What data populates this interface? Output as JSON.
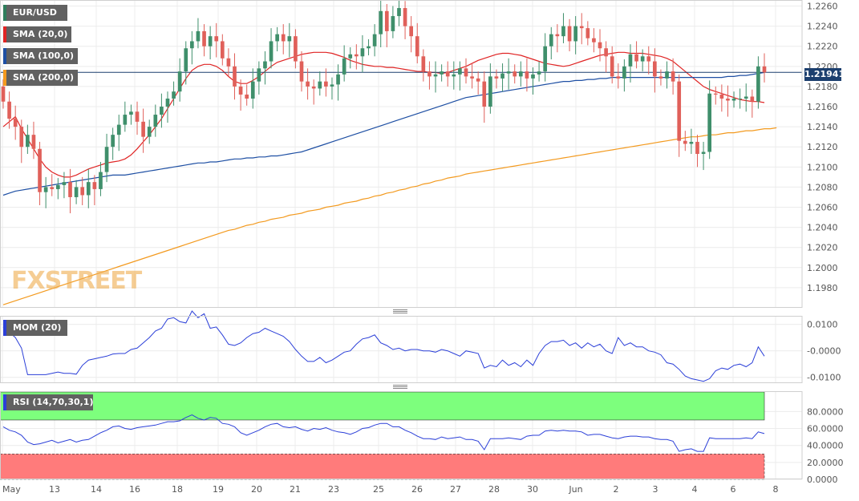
{
  "chart_data": [
    {
      "type": "candlestick",
      "symbol": "EUR/USD",
      "last_price": "1.21941",
      "ylim": [
        1.196,
        1.2266
      ],
      "y_ticks": [
        "1.2260",
        "1.2240",
        "1.2220",
        "1.2200",
        "1.2180",
        "1.2160",
        "1.2140",
        "1.2120",
        "1.2100",
        "1.2080",
        "1.2060",
        "1.2040",
        "1.2020",
        "1.2000",
        "1.1980"
      ],
      "x_ticks": [
        "May",
        "13",
        "14",
        "16",
        "18",
        "19",
        "20",
        "21",
        "23",
        "25",
        "26",
        "27",
        "28",
        "30",
        "Jun",
        "2",
        "3",
        "4",
        "6",
        "8"
      ],
      "closes": [
        1.2165,
        1.2148,
        1.214,
        1.212,
        1.2132,
        1.2118,
        1.2075,
        1.208,
        1.2078,
        1.2082,
        1.2085,
        1.207,
        1.208,
        1.2072,
        1.2085,
        1.2078,
        1.2095,
        1.212,
        1.2132,
        1.2142,
        1.2152,
        1.2155,
        1.2145,
        1.213,
        1.214,
        1.2152,
        1.216,
        1.2168,
        1.2175,
        1.2195,
        1.2218,
        1.2225,
        1.2235,
        1.222,
        1.223,
        1.2225,
        1.2208,
        1.22,
        1.218,
        1.2172,
        1.2168,
        1.2185,
        1.2198,
        1.2205,
        1.2225,
        1.2232,
        1.2225,
        1.223,
        1.2205,
        1.2185,
        1.218,
        1.2178,
        1.2185,
        1.218,
        1.2182,
        1.2192,
        1.2208,
        1.2212,
        1.221,
        1.2218,
        1.222,
        1.2232,
        1.2255,
        1.2235,
        1.225,
        1.2258,
        1.224,
        1.223,
        1.221,
        1.2195,
        1.219,
        1.2192,
        1.2195,
        1.219,
        1.2192,
        1.2198,
        1.219,
        1.2188,
        1.2185,
        1.216,
        1.219,
        1.2188,
        1.2193,
        1.2195,
        1.219,
        1.2195,
        1.2188,
        1.2192,
        1.2195,
        1.222,
        1.2232,
        1.223,
        1.224,
        1.2225,
        1.224,
        1.2238,
        1.2228,
        1.2224,
        1.2218,
        1.221,
        1.219,
        1.2188,
        1.22,
        1.2212,
        1.2205,
        1.221,
        1.2205,
        1.219,
        1.2188,
        1.2195,
        1.2185,
        1.2126,
        1.2123,
        1.2125,
        1.2113,
        1.2115,
        1.2173,
        1.2172,
        1.2168,
        1.2166,
        1.2168,
        1.2168,
        1.217,
        1.2165,
        1.22,
        1.2194
      ],
      "opens": [
        1.218,
        1.2165,
        1.2148,
        1.214,
        1.212,
        1.2132,
        1.2118,
        1.2075,
        1.208,
        1.2078,
        1.2082,
        1.2085,
        1.207,
        1.208,
        1.2072,
        1.2085,
        1.2078,
        1.2095,
        1.212,
        1.2132,
        1.2142,
        1.2152,
        1.2155,
        1.2145,
        1.213,
        1.214,
        1.2152,
        1.216,
        1.2168,
        1.2175,
        1.2195,
        1.2218,
        1.2225,
        1.2235,
        1.222,
        1.223,
        1.2225,
        1.2208,
        1.22,
        1.218,
        1.2172,
        1.2168,
        1.2185,
        1.2198,
        1.2205,
        1.2225,
        1.2232,
        1.2225,
        1.223,
        1.2205,
        1.2185,
        1.218,
        1.2178,
        1.2185,
        1.218,
        1.2182,
        1.2192,
        1.2208,
        1.2212,
        1.221,
        1.2218,
        1.222,
        1.2232,
        1.2255,
        1.2235,
        1.225,
        1.2258,
        1.224,
        1.223,
        1.221,
        1.2195,
        1.219,
        1.2192,
        1.2195,
        1.219,
        1.2192,
        1.2198,
        1.219,
        1.2188,
        1.2185,
        1.216,
        1.219,
        1.2188,
        1.2193,
        1.2195,
        1.219,
        1.2195,
        1.2188,
        1.2192,
        1.2195,
        1.222,
        1.2232,
        1.223,
        1.224,
        1.2225,
        1.224,
        1.2238,
        1.2228,
        1.2224,
        1.2218,
        1.221,
        1.219,
        1.2188,
        1.22,
        1.2212,
        1.2205,
        1.221,
        1.2205,
        1.219,
        1.2188,
        1.2195,
        1.2185,
        1.2126,
        1.2123,
        1.2125,
        1.2113,
        1.2115,
        1.2173,
        1.2172,
        1.2168,
        1.2166,
        1.2168,
        1.2168,
        1.217,
        1.2165,
        1.22
      ],
      "series": [
        {
          "name": "SMA (20,0)",
          "color": "#e02424",
          "values": [
            1.214,
            1.2145,
            1.215,
            1.2138,
            1.2128,
            1.2118,
            1.2108,
            1.21,
            1.2095,
            1.2092,
            1.209,
            1.209,
            1.2092,
            1.2095,
            1.2098,
            1.21,
            1.2102,
            1.2104,
            1.2105,
            1.2106,
            1.2108,
            1.2112,
            1.2118,
            1.2125,
            1.2132,
            1.214,
            1.2148,
            1.2158,
            1.2168,
            1.2178,
            1.2188,
            1.2196,
            1.22,
            1.2202,
            1.2202,
            1.22,
            1.2196,
            1.219,
            1.2185,
            1.2183,
            1.2183,
            1.2186,
            1.219,
            1.2195,
            1.22,
            1.2204,
            1.2206,
            1.2208,
            1.221,
            1.2212,
            1.2213,
            1.2214,
            1.2214,
            1.2214,
            1.2213,
            1.2211,
            1.2209,
            1.2206,
            1.2204,
            1.2202,
            1.2201,
            1.22,
            1.22,
            1.2199,
            1.2199,
            1.2198,
            1.2197,
            1.2196,
            1.2195,
            1.2195,
            1.2194,
            1.2194,
            1.2193,
            1.2194,
            1.2196,
            1.2198,
            1.22,
            1.2203,
            1.2206,
            1.2208,
            1.221,
            1.2212,
            1.2213,
            1.2213,
            1.2212,
            1.2211,
            1.2209,
            1.2207,
            1.2205,
            1.2203,
            1.2202,
            1.2201,
            1.22,
            1.2201,
            1.2203,
            1.2205,
            1.2207,
            1.2209,
            1.2211,
            1.2212,
            1.2213,
            1.2214,
            1.2214,
            1.2213,
            1.2213,
            1.2213,
            1.2212,
            1.2211,
            1.221,
            1.2208,
            1.2205,
            1.22,
            1.2195,
            1.219,
            1.2185,
            1.218,
            1.2177,
            1.2175,
            1.2173,
            1.2171,
            1.2169,
            1.2167,
            1.2166,
            1.2165,
            1.2165,
            1.2164
          ]
        },
        {
          "name": "SMA (100,0)",
          "color": "#1e4fa3",
          "values": [
            1.2072,
            1.2074,
            1.2076,
            1.2077,
            1.2078,
            1.2079,
            1.208,
            1.2081,
            1.2082,
            1.2083,
            1.2084,
            1.2085,
            1.2086,
            1.2087,
            1.2088,
            1.2089,
            1.209,
            1.2091,
            1.2092,
            1.2092,
            1.2092,
            1.2093,
            1.2094,
            1.2095,
            1.2096,
            1.2097,
            1.2098,
            1.2099,
            1.21,
            1.2101,
            1.2102,
            1.2103,
            1.2104,
            1.2104,
            1.2105,
            1.2105,
            1.2106,
            1.2107,
            1.2108,
            1.2108,
            1.2109,
            1.2109,
            1.211,
            1.211,
            1.2111,
            1.2111,
            1.2112,
            1.2113,
            1.2114,
            1.2115,
            1.2117,
            1.2119,
            1.2121,
            1.2123,
            1.2125,
            1.2127,
            1.2129,
            1.2131,
            1.2133,
            1.2135,
            1.2137,
            1.2139,
            1.2141,
            1.2143,
            1.2145,
            1.2147,
            1.2149,
            1.2151,
            1.2153,
            1.2155,
            1.2157,
            1.2159,
            1.2161,
            1.2163,
            1.2165,
            1.2167,
            1.2169,
            1.217,
            1.2171,
            1.2172,
            1.2173,
            1.2174,
            1.2175,
            1.2176,
            1.2177,
            1.2178,
            1.2179,
            1.218,
            1.2181,
            1.2182,
            1.2183,
            1.2184,
            1.2185,
            1.2185,
            1.2186,
            1.2186,
            1.2187,
            1.2187,
            1.2188,
            1.2188,
            1.2189,
            1.2189,
            1.2189,
            1.2189,
            1.2189,
            1.2189,
            1.2189,
            1.2189,
            1.2189,
            1.2189,
            1.2189,
            1.2189,
            1.2189,
            1.2189,
            1.2189,
            1.2189,
            1.2189,
            1.2189,
            1.2189,
            1.219,
            1.219,
            1.2191,
            1.2191,
            1.2192,
            1.2193,
            1.2194
          ]
        },
        {
          "name": "SMA (200,0)",
          "color": "#f39a1f",
          "values": [
            1.1963,
            1.1965,
            1.1967,
            1.1969,
            1.1971,
            1.1973,
            1.1975,
            1.1977,
            1.1979,
            1.1981,
            1.1983,
            1.1985,
            1.1987,
            1.1989,
            1.1991,
            1.1993,
            1.1995,
            1.1997,
            1.1999,
            1.2001,
            1.2003,
            1.2005,
            1.2007,
            1.2009,
            1.2011,
            1.2013,
            1.2015,
            1.2017,
            1.2019,
            1.2021,
            1.2023,
            1.2025,
            1.2027,
            1.2029,
            1.2031,
            1.2033,
            1.2035,
            1.2037,
            1.2038,
            1.204,
            1.2042,
            1.2043,
            1.2045,
            1.2046,
            1.2048,
            1.2049,
            1.205,
            1.2052,
            1.2053,
            1.2054,
            1.2056,
            1.2057,
            1.2058,
            1.206,
            1.2061,
            1.2062,
            1.2064,
            1.2065,
            1.2066,
            1.2068,
            1.2069,
            1.2071,
            1.2072,
            1.2074,
            1.2075,
            1.2077,
            1.2078,
            1.208,
            1.2081,
            1.2083,
            1.2084,
            1.2086,
            1.2087,
            1.2089,
            1.209,
            1.2091,
            1.2093,
            1.2094,
            1.2095,
            1.2096,
            1.2097,
            1.2098,
            1.2099,
            1.21,
            1.2101,
            1.2102,
            1.2103,
            1.2104,
            1.2105,
            1.2106,
            1.2107,
            1.2108,
            1.2109,
            1.211,
            1.2111,
            1.2112,
            1.2113,
            1.2114,
            1.2115,
            1.2116,
            1.2117,
            1.2118,
            1.2119,
            1.212,
            1.2121,
            1.2122,
            1.2123,
            1.2124,
            1.2125,
            1.2126,
            1.2127,
            1.2128,
            1.2129,
            1.213,
            1.213,
            1.2131,
            1.2132,
            1.2132,
            1.2133,
            1.2134,
            1.2134,
            1.2135,
            1.2136,
            1.2136,
            1.2137,
            1.2138,
            1.2138,
            1.2139
          ]
        }
      ]
    },
    {
      "type": "line",
      "indicator": "MOM (20)",
      "ylim": [
        -0.0122,
        0.0132
      ],
      "y_ticks": [
        "0.0100",
        "-0.0000",
        "-0.0100"
      ],
      "series": [
        {
          "name": "MOM (20)",
          "color": "#2b3fd8",
          "values": [
            0.009,
            0.007,
            0.005,
            0.001,
            -0.009,
            -0.009,
            -0.009,
            -0.009,
            -0.0085,
            -0.008,
            -0.0085,
            -0.0085,
            -0.0088,
            -0.0055,
            -0.0035,
            -0.003,
            -0.0025,
            -0.002,
            -0.0012,
            -0.001,
            -0.001,
            0.0005,
            0.001,
            0.003,
            0.005,
            0.0075,
            0.0085,
            0.012,
            0.0125,
            0.011,
            0.0105,
            0.015,
            0.0125,
            0.014,
            0.0085,
            0.009,
            0.006,
            0.0025,
            0.002,
            0.003,
            0.005,
            0.0065,
            0.007,
            0.0085,
            0.0075,
            0.0065,
            0.0055,
            0.0035,
            0.0005,
            -0.002,
            -0.004,
            -0.004,
            -0.0025,
            -0.0045,
            -0.0035,
            -0.002,
            -0.0005,
            0.0,
            0.0025,
            0.0045,
            0.005,
            0.006,
            0.003,
            0.002,
            0.0005,
            0.001,
            0.0,
            0.0005,
            0.0005,
            0.0,
            0.0,
            -0.0005,
            0.0005,
            0.0,
            -0.001,
            -0.002,
            0.0,
            -0.0005,
            -0.001,
            -0.0065,
            -0.0055,
            -0.006,
            -0.0035,
            -0.0055,
            -0.0045,
            -0.006,
            -0.0035,
            -0.0055,
            -0.001,
            0.002,
            0.0035,
            0.0035,
            0.004,
            0.002,
            0.003,
            0.001,
            0.003,
            0.0015,
            0.0025,
            0.0,
            -0.001,
            0.005,
            0.002,
            0.003,
            0.0015,
            0.0015,
            0.0,
            -0.0005,
            -0.0015,
            -0.0045,
            -0.005,
            -0.007,
            -0.0095,
            -0.0105,
            -0.011,
            -0.0115,
            -0.0105,
            -0.0075,
            -0.0065,
            -0.007,
            -0.0055,
            -0.005,
            -0.006,
            -0.0045,
            0.0015,
            -0.002
          ]
        }
      ]
    },
    {
      "type": "line",
      "indicator": "RSI (14,70,30,1)",
      "ylim": [
        0,
        104
      ],
      "y_ticks": [
        "80.0000",
        "60.0000",
        "40.0000",
        "20.0000",
        "0.0000"
      ],
      "bands": {
        "upper": 70,
        "lower": 30,
        "upper_color": "#7dff7d",
        "lower_color": "#ff7b7b"
      },
      "series": [
        {
          "name": "RSI (14,70,30,1)",
          "color": "#2b3fd8",
          "values": [
            62,
            58,
            56,
            52,
            44,
            41,
            42,
            44,
            46,
            43,
            45,
            47,
            44,
            46,
            47,
            51,
            55,
            58,
            62,
            63,
            60,
            59,
            61,
            62,
            63,
            64,
            66,
            68,
            68,
            69,
            73,
            76,
            72,
            70,
            73,
            72,
            66,
            65,
            62,
            55,
            52,
            55,
            58,
            62,
            65,
            66,
            62,
            61,
            62,
            59,
            57,
            60,
            59,
            61,
            58,
            56,
            55,
            53,
            56,
            60,
            61,
            64,
            66,
            66,
            62,
            62,
            58,
            55,
            51,
            48,
            48,
            47,
            50,
            48,
            49,
            50,
            47,
            47,
            45,
            35,
            48,
            48,
            48,
            49,
            48,
            47,
            51,
            52,
            52,
            57,
            58,
            57,
            58,
            57,
            57,
            56,
            52,
            53,
            53,
            51,
            49,
            48,
            50,
            51,
            51,
            50,
            50,
            48,
            47,
            47,
            45,
            33,
            35,
            36,
            33,
            33,
            49,
            48,
            48,
            48,
            48,
            48,
            49,
            48,
            56,
            54
          ]
        }
      ]
    }
  ]
}
